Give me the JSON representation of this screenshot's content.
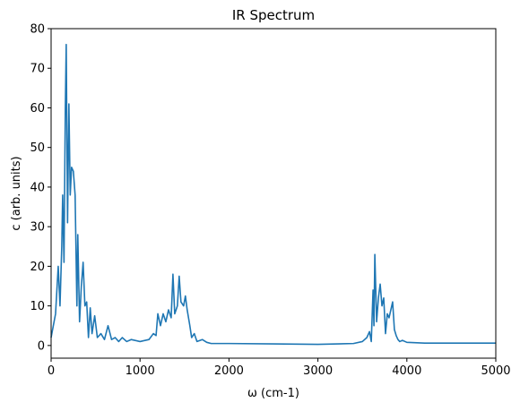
{
  "chart_data": {
    "type": "line",
    "title": "IR Spectrum",
    "x_label": "ω (cm-1)",
    "y_label": "c (arb. units)",
    "x": [
      0,
      50,
      80,
      100,
      120,
      130,
      145,
      160,
      170,
      185,
      200,
      215,
      230,
      250,
      270,
      290,
      300,
      320,
      340,
      360,
      380,
      400,
      420,
      440,
      460,
      490,
      520,
      560,
      600,
      640,
      680,
      720,
      760,
      800,
      850,
      900,
      1000,
      1100,
      1150,
      1180,
      1200,
      1230,
      1260,
      1290,
      1320,
      1350,
      1370,
      1390,
      1420,
      1440,
      1460,
      1490,
      1510,
      1530,
      1560,
      1580,
      1610,
      1640,
      1700,
      1750,
      1800,
      2000,
      2500,
      3000,
      3400,
      3500,
      3550,
      3580,
      3600,
      3620,
      3630,
      3640,
      3660,
      3680,
      3700,
      3720,
      3740,
      3760,
      3780,
      3800,
      3820,
      3840,
      3860,
      3880,
      3900,
      3920,
      3950,
      4000,
      4200,
      5000
    ],
    "series": [
      {
        "color": "#1f77b4",
        "values": [
          2,
          8,
          20,
          10,
          25,
          38,
          21,
          60,
          76,
          31,
          61,
          38,
          45,
          44,
          38,
          10,
          28,
          6,
          15,
          21,
          10,
          11,
          2,
          9.5,
          3,
          7.5,
          2,
          3,
          1.5,
          5,
          1.5,
          2,
          1,
          2,
          1,
          1.5,
          1,
          1.5,
          3,
          2.5,
          8,
          5,
          8,
          6,
          9,
          7,
          18,
          8,
          10,
          17.5,
          11,
          10,
          12.5,
          9,
          5,
          2,
          3,
          1,
          1.5,
          0.8,
          0.5,
          0.5,
          0.4,
          0.3,
          0.5,
          1,
          2,
          3.5,
          1,
          14,
          5,
          23,
          6,
          12,
          15.5,
          10,
          12,
          3,
          8,
          7,
          9,
          11,
          4,
          2.5,
          1.5,
          1,
          1.3,
          0.8,
          0.6,
          0.6
        ]
      }
    ],
    "xlim": [
      0,
      5000
    ],
    "ylim": [
      -3.2,
      80
    ],
    "xticks": [
      0,
      1000,
      2000,
      3000,
      4000,
      5000
    ],
    "yticks": [
      0,
      10,
      20,
      30,
      40,
      50,
      60,
      70,
      80
    ]
  }
}
